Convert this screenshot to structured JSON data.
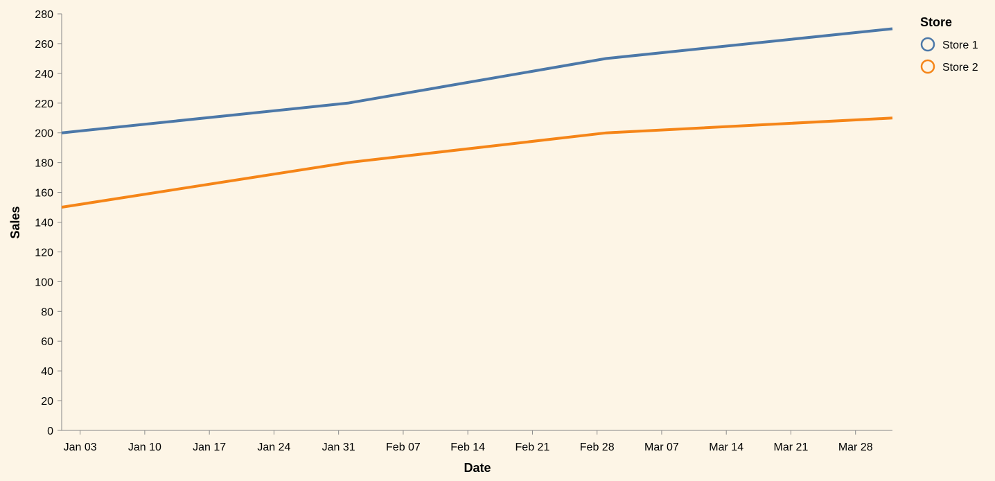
{
  "chart_data": {
    "type": "line",
    "xlabel": "Date",
    "ylabel": "Sales",
    "x": [
      "2023-01-01",
      "2023-02-01",
      "2023-03-01",
      "2023-04-01"
    ],
    "series": [
      {
        "name": "Store 1",
        "values": [
          200,
          220,
          250,
          270
        ],
        "color": "#4c78a8"
      },
      {
        "name": "Store 2",
        "values": [
          150,
          180,
          200,
          210
        ],
        "color": "#f58518"
      }
    ],
    "x_range": [
      "2023-01-01",
      "2023-04-01"
    ],
    "ylim": [
      0,
      280
    ],
    "y_ticks": [
      0,
      20,
      40,
      60,
      80,
      100,
      120,
      140,
      160,
      180,
      200,
      220,
      240,
      260,
      280
    ],
    "x_ticks": [
      {
        "date": "2023-01-03",
        "label": "Jan 03"
      },
      {
        "date": "2023-01-10",
        "label": "Jan 10"
      },
      {
        "date": "2023-01-17",
        "label": "Jan 17"
      },
      {
        "date": "2023-01-24",
        "label": "Jan 24"
      },
      {
        "date": "2023-01-31",
        "label": "Jan 31"
      },
      {
        "date": "2023-02-07",
        "label": "Feb 07"
      },
      {
        "date": "2023-02-14",
        "label": "Feb 14"
      },
      {
        "date": "2023-02-21",
        "label": "Feb 21"
      },
      {
        "date": "2023-02-28",
        "label": "Feb 28"
      },
      {
        "date": "2023-03-07",
        "label": "Mar 07"
      },
      {
        "date": "2023-03-14",
        "label": "Mar 14"
      },
      {
        "date": "2023-03-21",
        "label": "Mar 21"
      },
      {
        "date": "2023-03-28",
        "label": "Mar 28"
      }
    ],
    "legend": {
      "title": "Store",
      "placement": "top-right"
    },
    "grid": false,
    "background": "#fdf5e6"
  }
}
